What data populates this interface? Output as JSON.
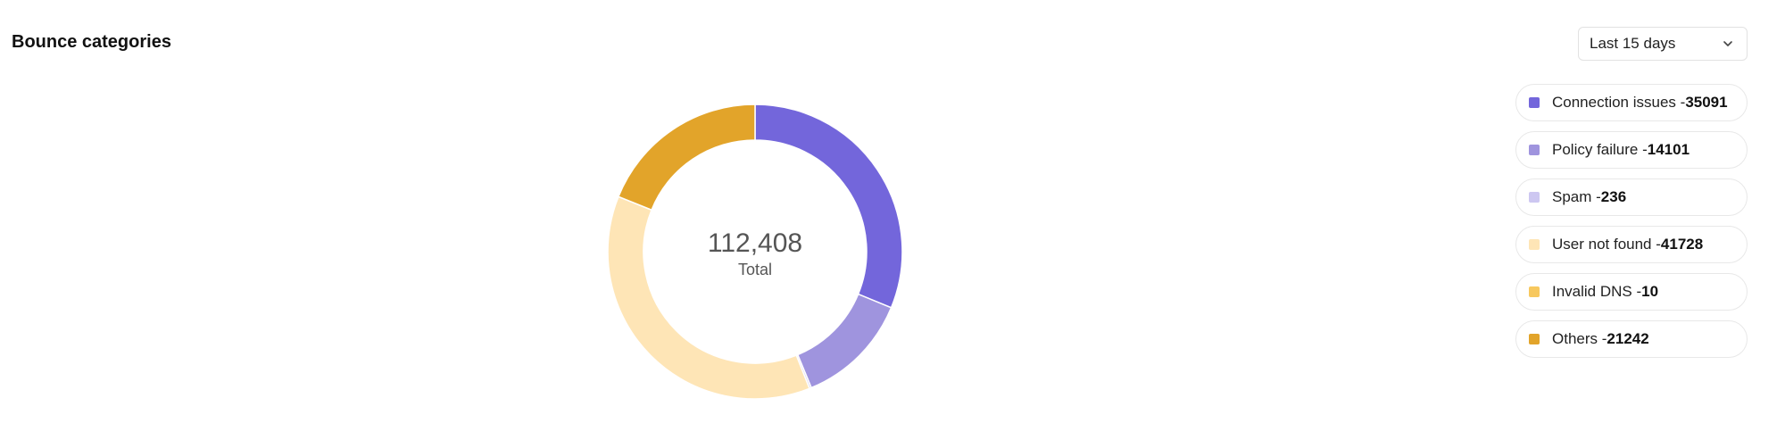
{
  "header": {
    "title": "Bounce categories",
    "range_select": {
      "value": "Last 15 days",
      "icon": "chevron-down-icon"
    }
  },
  "chart_data": {
    "type": "pie",
    "variant": "donut",
    "title": "Bounce categories",
    "center_value": "112,408",
    "center_label": "Total",
    "legend_position": "right",
    "categories": [
      "Connection issues",
      "Policy failure",
      "Spam",
      "User not found",
      "Invalid DNS",
      "Others"
    ],
    "values": [
      35091,
      14101,
      236,
      41728,
      10,
      21242
    ],
    "colors": [
      "#7366db",
      "#9f94de",
      "#cdc7f1",
      "#fee5b6",
      "#f7c85e",
      "#e2a42a"
    ]
  },
  "legend": {
    "separator": " - "
  }
}
